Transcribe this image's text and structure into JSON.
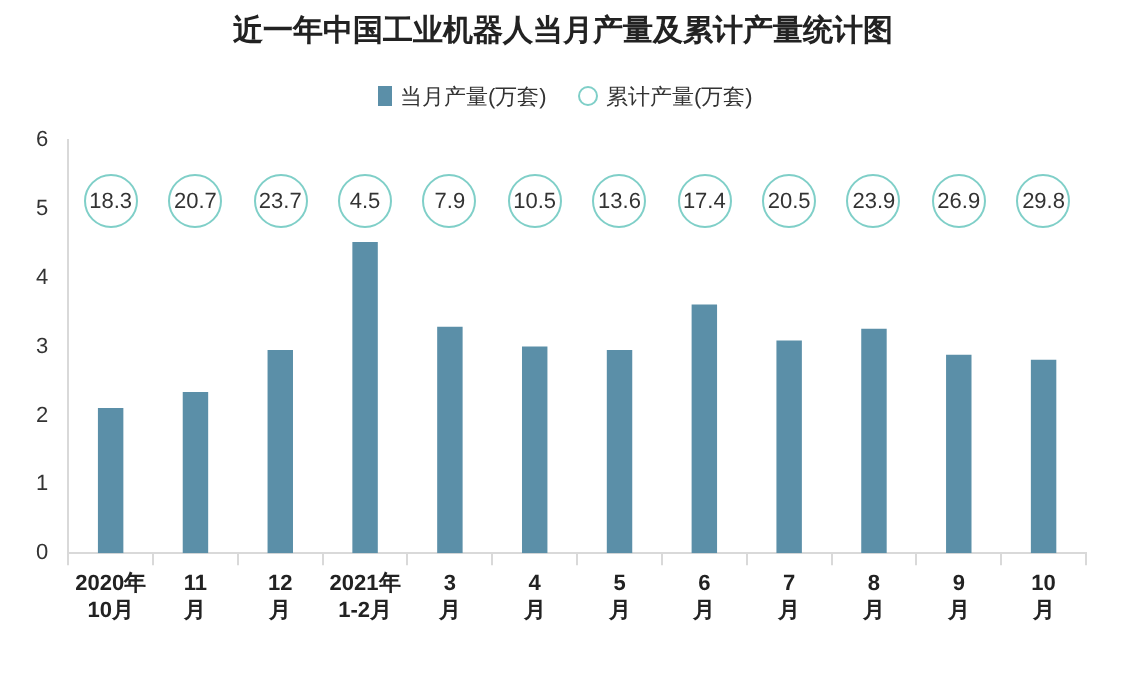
{
  "chart_data": [
    {
      "type": "bar",
      "title": "近一年中国工业机器人当月产量及累计产量统计图",
      "categories": [
        "2020年\n10月",
        "11\n月",
        "12\n月",
        "2021年\n1-2月",
        "3\n月",
        "4\n月",
        "5\n月",
        "6\n月",
        "7\n月",
        "8\n月",
        "9\n月",
        "10\n月"
      ],
      "series": [
        {
          "name": "当月产量(万套)",
          "color": "#5b8fa8",
          "values": [
            2.11,
            2.34,
            2.95,
            4.52,
            3.29,
            3.0,
            2.95,
            3.61,
            3.09,
            3.26,
            2.88,
            2.81
          ]
        }
      ],
      "ylim": [
        0,
        6
      ],
      "yticks": [
        0,
        1,
        2,
        3,
        4,
        5,
        6
      ],
      "grid": false,
      "legend": "top"
    },
    {
      "type": "other",
      "series": [
        {
          "name": "累计产量(万套)",
          "color": "#7fcfc8",
          "values": [
            18.3,
            20.7,
            23.7,
            4.5,
            7.9,
            10.5,
            13.6,
            17.4,
            20.5,
            23.9,
            26.9,
            29.8
          ]
        }
      ],
      "data_labels": true,
      "legend": "top"
    }
  ]
}
